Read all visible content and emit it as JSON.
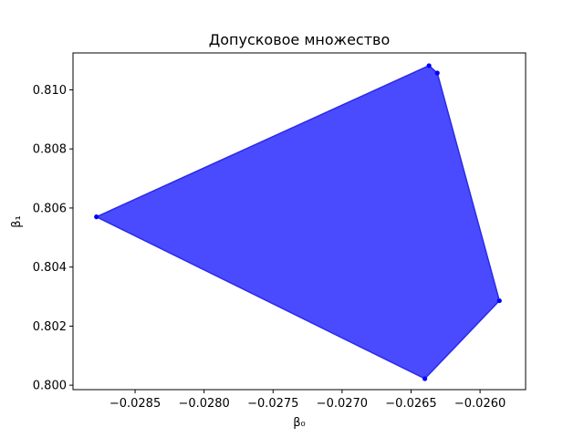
{
  "chart_data": {
    "type": "area",
    "title": "Допусковое множество",
    "xlabel": "β₀",
    "ylabel": "β₁",
    "xlim": [
      -0.02895,
      -0.02567
    ],
    "ylim": [
      0.79985,
      0.81125
    ],
    "x_ticks": [
      -0.0285,
      -0.028,
      -0.0275,
      -0.027,
      -0.0265,
      -0.026
    ],
    "x_tick_labels": [
      "−0.0285",
      "−0.0280",
      "−0.0275",
      "−0.0270",
      "−0.0265",
      "−0.0260"
    ],
    "y_ticks": [
      0.8,
      0.802,
      0.804,
      0.806,
      0.808,
      0.81
    ],
    "y_tick_labels": [
      "0.800",
      "0.802",
      "0.804",
      "0.806",
      "0.808",
      "0.810"
    ],
    "grid": false,
    "fill_color": "#4a4aff",
    "edge_color": "#2b2be8",
    "marker_color": "#0000ff",
    "vertices": [
      {
        "x": -0.02878,
        "y": 0.8057
      },
      {
        "x": -0.02637,
        "y": 0.81082
      },
      {
        "x": -0.02631,
        "y": 0.81057
      },
      {
        "x": -0.02586,
        "y": 0.80286
      },
      {
        "x": -0.0264,
        "y": 0.80022
      }
    ]
  }
}
